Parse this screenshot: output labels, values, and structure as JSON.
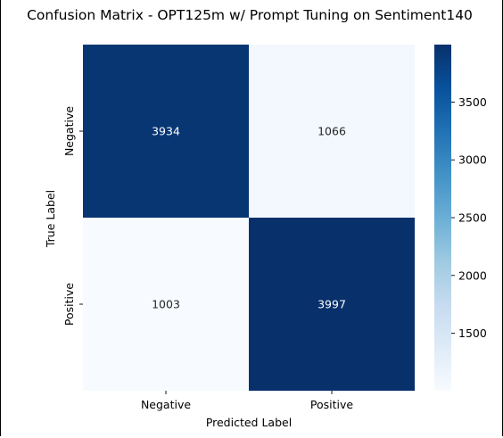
{
  "chart_data": {
    "type": "heatmap",
    "title": "Confusion Matrix - OPT125m w/ Prompt Tuning on Sentiment140",
    "xlabel": "Predicted Label",
    "ylabel": "True Label",
    "x_categories": [
      "Negative",
      "Positive"
    ],
    "y_categories": [
      "Negative",
      "Positive"
    ],
    "values": [
      [
        3934,
        1066
      ],
      [
        1003,
        3997
      ]
    ],
    "colormap": "Blues",
    "colorbar": {
      "min": 1003,
      "max": 3997,
      "ticks": [
        1500,
        2000,
        2500,
        3000,
        3500
      ]
    },
    "grid": false
  }
}
